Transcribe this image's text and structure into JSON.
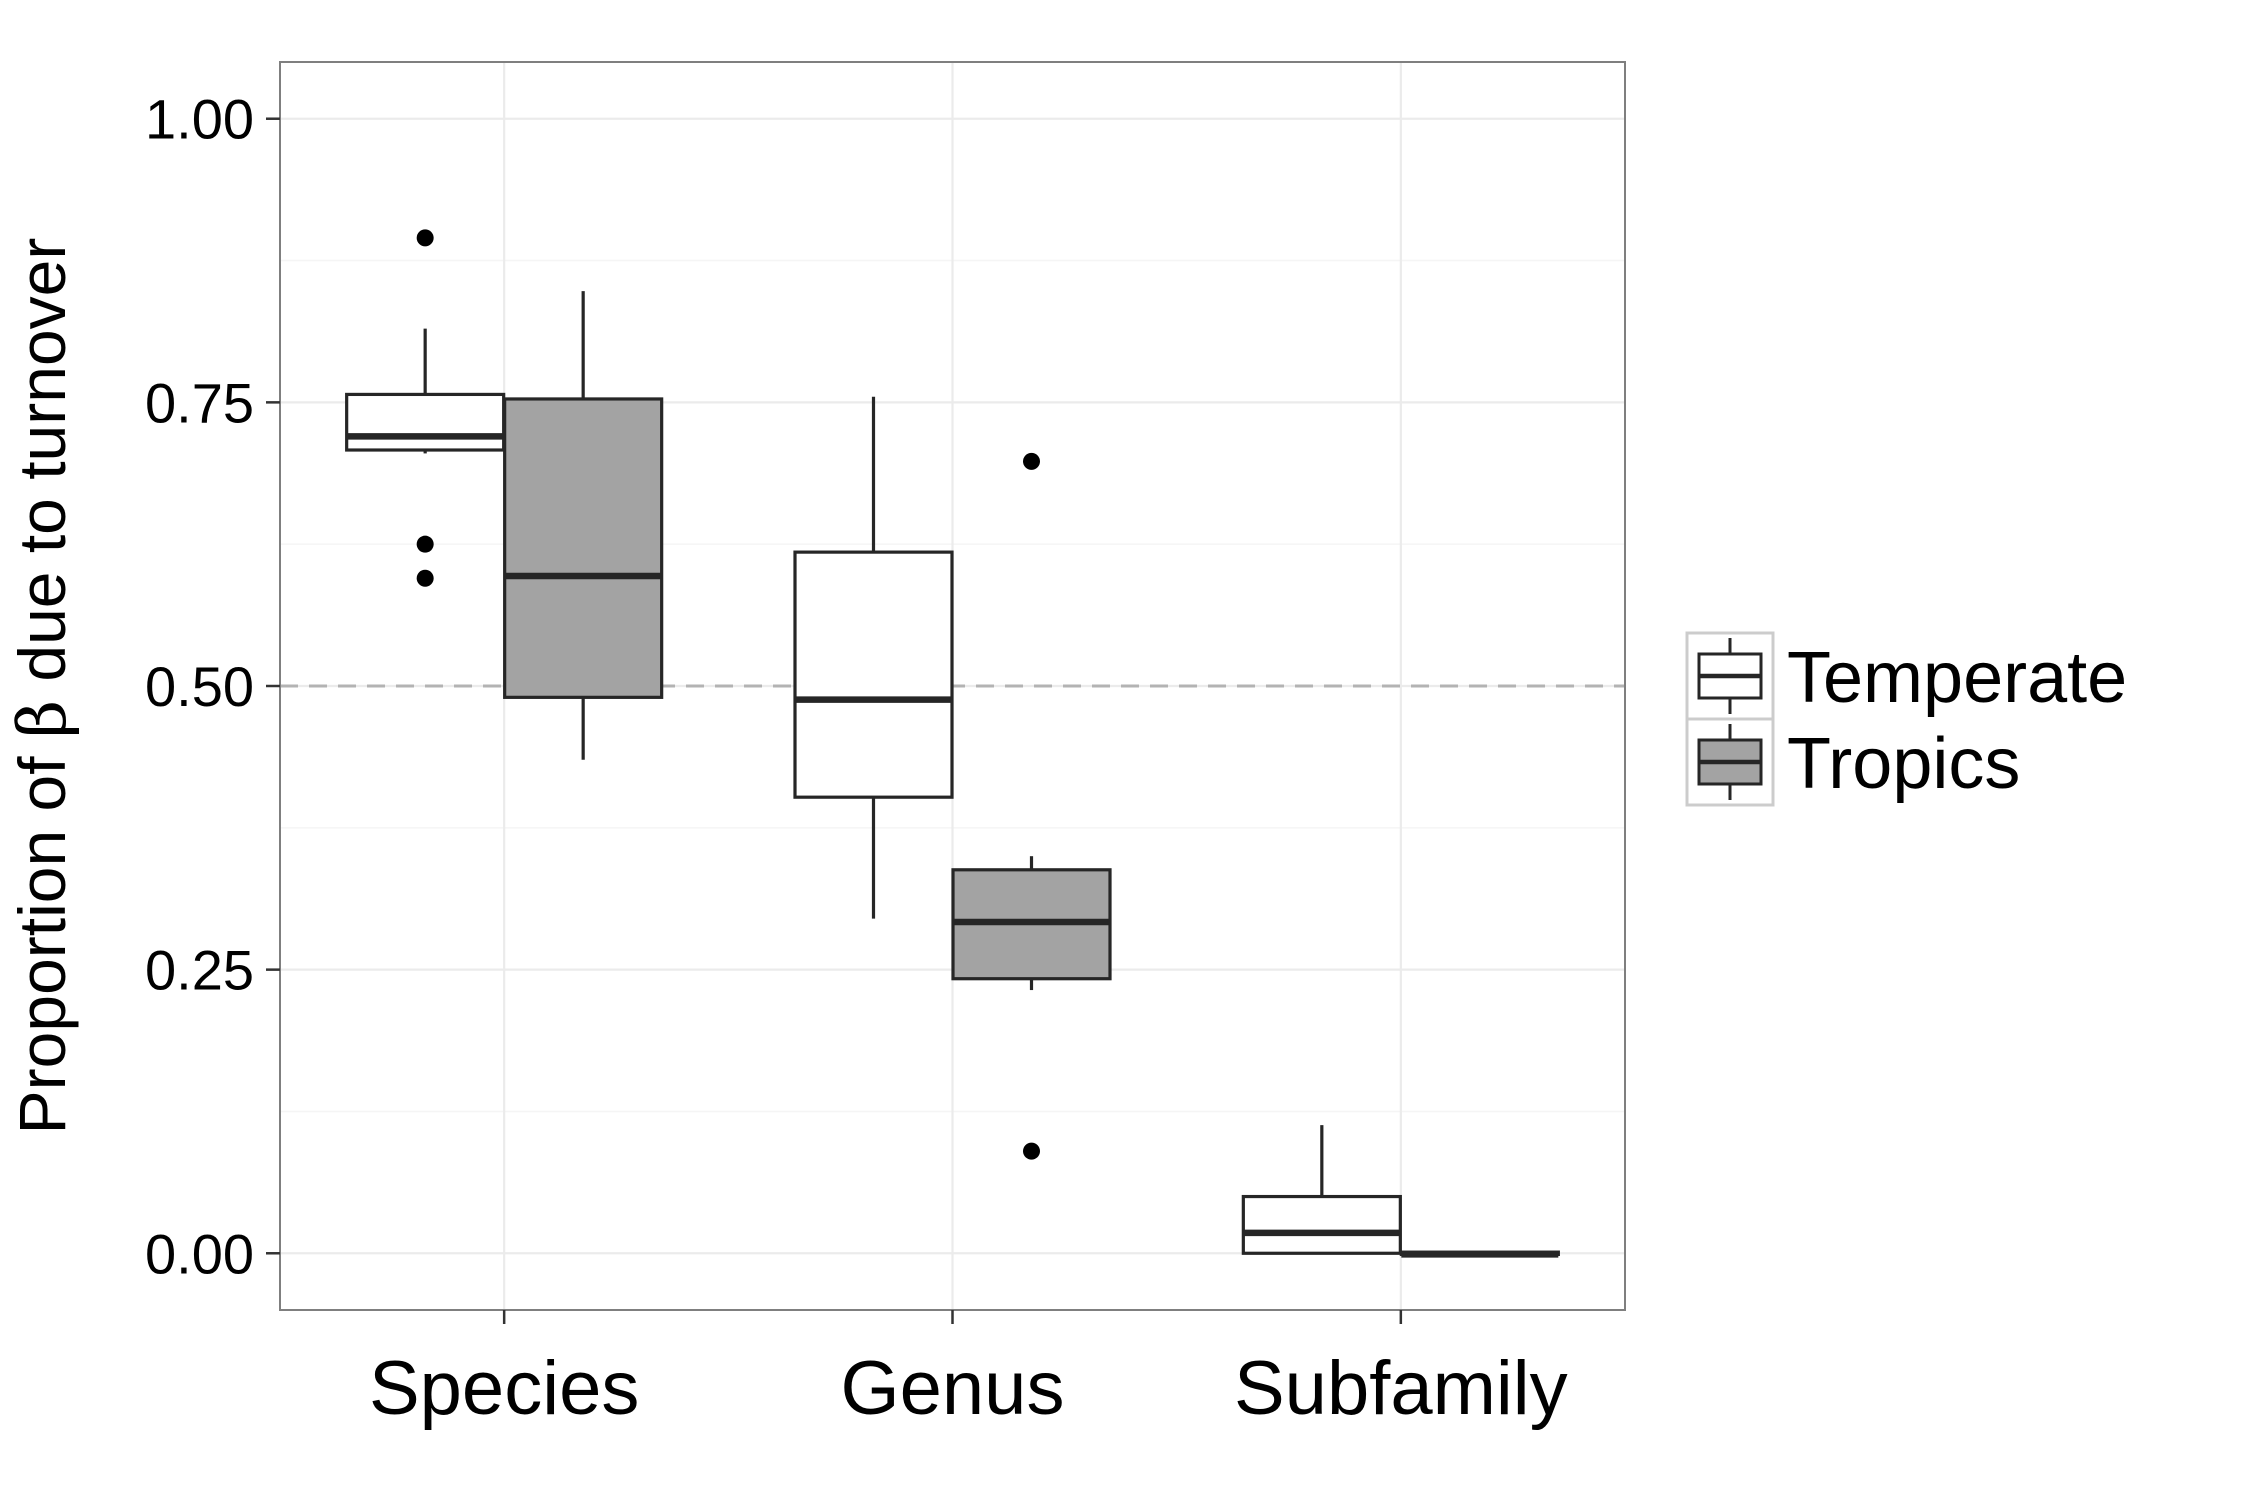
{
  "chart_data": {
    "type": "boxplot",
    "categories": [
      "Species",
      "Genus",
      "Subfamily"
    ],
    "ylabel_prefix": "Proportion of ",
    "ylabel_symbol": "β",
    "ylabel_suffix": " due to turnover",
    "xlabel": "",
    "ylim": [
      -0.05,
      1.05
    ],
    "yticks": [
      0.0,
      0.25,
      0.5,
      0.75,
      1.0
    ],
    "ytick_labels": [
      "0.00",
      "0.25",
      "0.50",
      "0.75",
      "1.00"
    ],
    "reference_line": 0.5,
    "grid": true,
    "legend_position": "right",
    "series": [
      {
        "name": "Temperate",
        "color": "#ffffff",
        "boxes": [
          {
            "category": "Species",
            "whisker_low": 0.705,
            "q1": 0.708,
            "median": 0.72,
            "q3": 0.757,
            "whisker_high": 0.815,
            "outliers": [
              0.895,
              0.625,
              0.595
            ]
          },
          {
            "category": "Genus",
            "whisker_low": 0.295,
            "q1": 0.402,
            "median": 0.488,
            "q3": 0.618,
            "whisker_high": 0.755,
            "outliers": []
          },
          {
            "category": "Subfamily",
            "whisker_low": 0.0,
            "q1": 0.0,
            "median": 0.018,
            "q3": 0.05,
            "whisker_high": 0.113,
            "outliers": []
          }
        ]
      },
      {
        "name": "Tropics",
        "color": "#a3a3a3",
        "boxes": [
          {
            "category": "Species",
            "whisker_low": 0.435,
            "q1": 0.49,
            "median": 0.597,
            "q3": 0.753,
            "whisker_high": 0.848,
            "outliers": []
          },
          {
            "category": "Genus",
            "whisker_low": 0.232,
            "q1": 0.242,
            "median": 0.292,
            "q3": 0.338,
            "whisker_high": 0.35,
            "outliers": [
              0.698,
              0.09
            ]
          },
          {
            "category": "Subfamily",
            "whisker_low": -0.001,
            "q1": -0.001,
            "median": -0.001,
            "q3": 0.001,
            "whisker_high": 0.001,
            "outliers": []
          }
        ]
      }
    ]
  }
}
